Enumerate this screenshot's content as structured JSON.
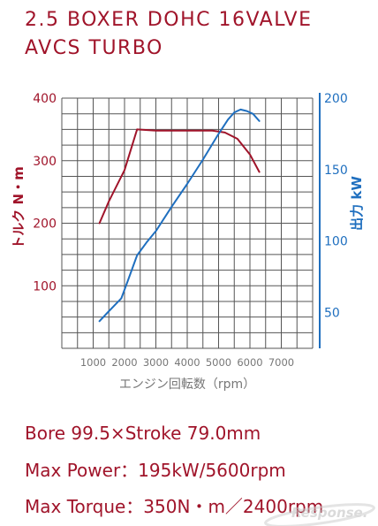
{
  "header": {
    "title_line1": "2.5 BOXER DOHC 16VALVE",
    "title_line2": "AVCS TURBO"
  },
  "specs": {
    "bore_stroke": "Bore 99.5×Stroke 79.0mm",
    "max_power": "Max Power：195kW/5600rpm",
    "max_torque": "Max Torque：350N・m／2400rpm"
  },
  "watermark_text": "Response.",
  "colors": {
    "torque": "#a0142a",
    "power": "#1f6fbf",
    "grid": "#555555",
    "text_red": "#a0142a",
    "text_blue": "#1f6fbf",
    "axis_gray": "#777777"
  },
  "chart_data": {
    "type": "line",
    "xlabel": "エンジン回転数（rpm）",
    "ylabel_left": "トルク N・m",
    "ylabel_right": "出力 kW",
    "xlim": [
      0,
      8000
    ],
    "ylim_left": [
      0,
      400
    ],
    "ylim_right": [
      25,
      200
    ],
    "x_ticks": [
      1000,
      2000,
      3000,
      4000,
      5000,
      6000,
      7000
    ],
    "y_ticks_left": [
      100,
      200,
      300,
      400
    ],
    "y_ticks_right": [
      50,
      100,
      150,
      200
    ],
    "grid": true,
    "series": [
      {
        "name": "トルク N・m",
        "axis": "left",
        "color": "#a0142a",
        "x": [
          1200,
          1500,
          2000,
          2400,
          3000,
          4000,
          4800,
          5200,
          5600,
          6000,
          6300
        ],
        "y": [
          200,
          235,
          285,
          350,
          348,
          348,
          348,
          345,
          335,
          310,
          282
        ]
      },
      {
        "name": "出力 kW",
        "axis": "right",
        "color": "#1f6fbf",
        "x": [
          1200,
          1500,
          1900,
          2100,
          2400,
          2700,
          3000,
          3500,
          4000,
          4500,
          5000,
          5300,
          5500,
          5700,
          5900,
          6100,
          6300
        ],
        "y": [
          44,
          51,
          60,
          72,
          90,
          99,
          107,
          124,
          140,
          157,
          175,
          185,
          190,
          192,
          191,
          189,
          184
        ]
      }
    ]
  }
}
